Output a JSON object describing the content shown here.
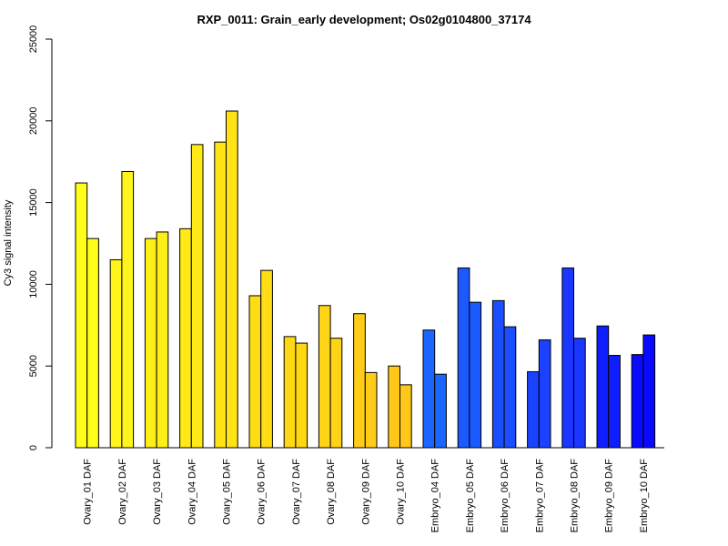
{
  "chart_data": {
    "type": "bar",
    "title": "RXP_0011: Grain_early development; Os02g0104800_37174",
    "xlabel": "",
    "ylabel": "Cy3 signal intensity",
    "ylim": [
      0,
      25000
    ],
    "yticks": [
      0,
      5000,
      10000,
      15000,
      20000,
      25000
    ],
    "grid": false,
    "categories": [
      "Ovary_01 DAF",
      "Ovary_02 DAF",
      "Ovary_03 DAF",
      "Ovary_04 DAF",
      "Ovary_05 DAF",
      "Ovary_06 DAF",
      "Ovary_07 DAF",
      "Ovary_08 DAF",
      "Ovary_09 DAF",
      "Ovary_10 DAF",
      "Embryo_04 DAF",
      "Embryo_05 DAF",
      "Embryo_06 DAF",
      "Embryo_07 DAF",
      "Embryo_08 DAF",
      "Embryo_09 DAF",
      "Embryo_10 DAF"
    ],
    "colors": [
      "#ffff1a",
      "#fff51a",
      "#ffef18",
      "#ffe916",
      "#ffe314",
      "#ffdc14",
      "#ffd814",
      "#ffd316",
      "#ffcd18",
      "#ffc818",
      "#1a66ff",
      "#1a5aff",
      "#1a4eff",
      "#1a42ff",
      "#1a36ff",
      "#0f1eff",
      "#0a0aff"
    ],
    "series": [
      {
        "values": [
          16200,
          11500,
          12800,
          13400,
          18700,
          9300,
          6800,
          8700,
          8200,
          5000,
          7200,
          11000,
          9000,
          4650,
          11000,
          7450,
          5700
        ]
      },
      {
        "values": [
          12800,
          16900,
          13200,
          18550,
          20600,
          10850,
          6400,
          6700,
          4600,
          3850,
          4500,
          8900,
          7400,
          6600,
          6700,
          5650,
          6900
        ]
      }
    ]
  }
}
